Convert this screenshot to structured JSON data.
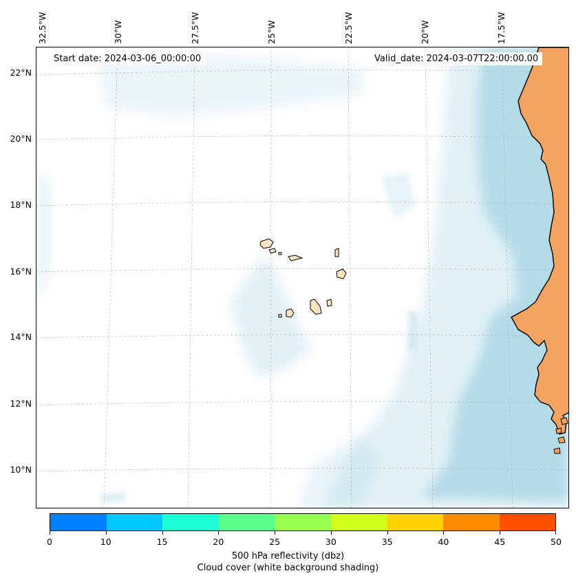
{
  "map": {
    "start_date": "Start date: 2024-03-06_00:00:00",
    "valid_date": "Valid_date: 2024-03-07T22:00:00.00",
    "lon_labels": [
      "32.5°W",
      "30°W",
      "27.5°W",
      "25°W",
      "22.5°W",
      "20°W",
      "17.5°W"
    ],
    "lat_labels": [
      "22°N",
      "20°N",
      "18°N",
      "16°N",
      "14°N",
      "12°N",
      "10°N"
    ],
    "colors": {
      "land": "#f4a460",
      "island": "#ffe4c4",
      "cloud": "#add8e6",
      "gridline": "#b0b0b0",
      "coastline": "#000000"
    }
  },
  "colorbar": {
    "ticks": [
      "0",
      "10",
      "15",
      "20",
      "25",
      "30",
      "35",
      "40",
      "45",
      "50"
    ],
    "colors": [
      "#0080ff",
      "#00c8ff",
      "#1effd8",
      "#5aff8c",
      "#96ff50",
      "#d2ff1e",
      "#ffd200",
      "#ff8c00",
      "#ff5000"
    ],
    "label_line1": "500 hPa reflectivity (dbz)",
    "label_line2": "Cloud cover (white background shading)"
  }
}
